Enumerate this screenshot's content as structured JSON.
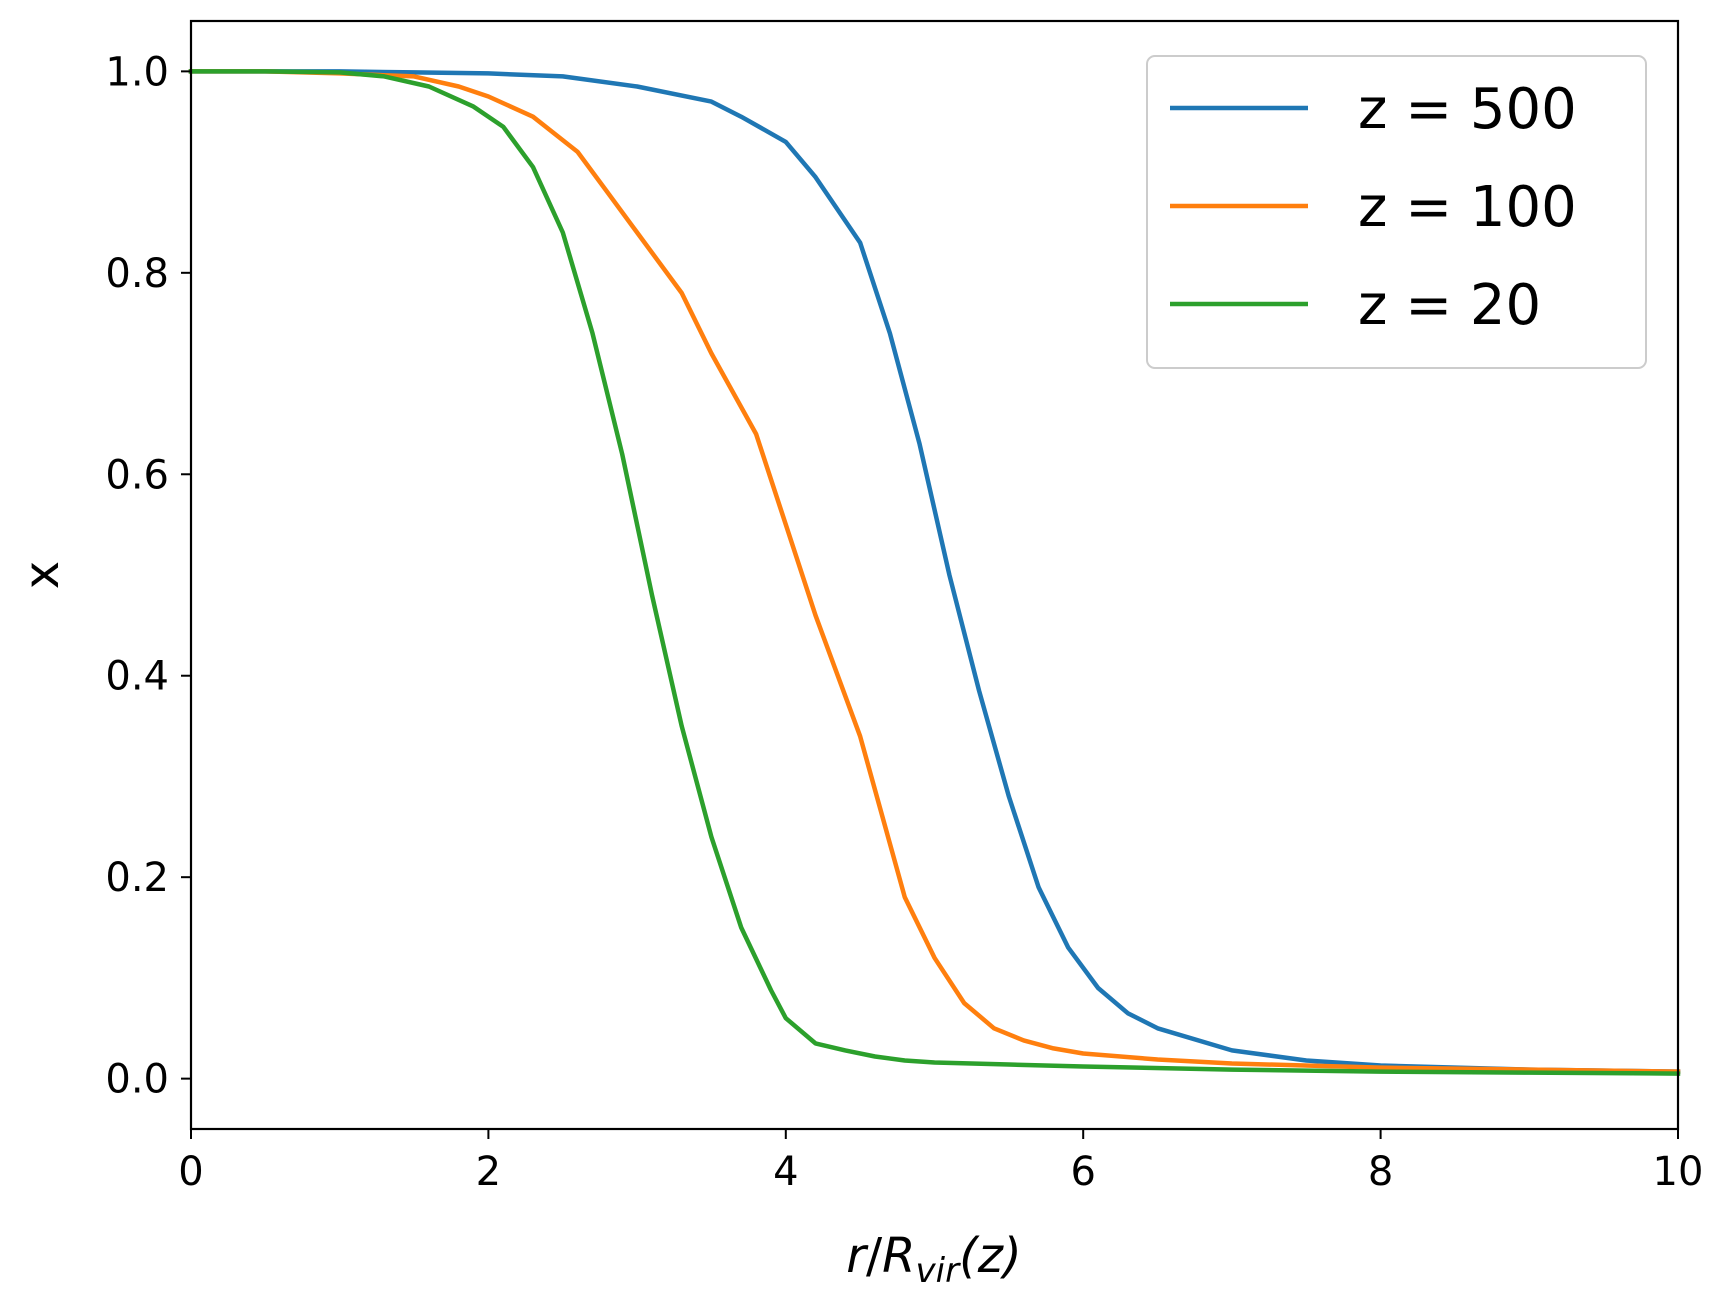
{
  "chart_data": {
    "type": "line",
    "xlabel_parts": {
      "r": "r",
      "slash": "/",
      "R": "R",
      "sub": "vir",
      "arg": "(z)"
    },
    "ylabel": "x",
    "xlim": [
      0,
      10
    ],
    "ylim": [
      -0.05,
      1.05
    ],
    "xticks": [
      0,
      2,
      4,
      6,
      8,
      10
    ],
    "xtick_labels": [
      "0",
      "2",
      "4",
      "6",
      "8",
      "10"
    ],
    "yticks": [
      0.0,
      0.2,
      0.4,
      0.6,
      0.8,
      1.0
    ],
    "ytick_labels": [
      "0.0",
      "0.2",
      "0.4",
      "0.6",
      "0.8",
      "1.0"
    ],
    "grid": false,
    "legend_position": "top-right",
    "series": [
      {
        "name": "z = 500",
        "color": "#1f77b4",
        "x": [
          0,
          0.5,
          1.0,
          1.5,
          2.0,
          2.5,
          3.0,
          3.5,
          3.7,
          4.0,
          4.2,
          4.5,
          4.7,
          4.9,
          5.1,
          5.3,
          5.5,
          5.7,
          5.9,
          6.1,
          6.3,
          6.5,
          7.0,
          7.5,
          8.0,
          9.0,
          10.0
        ],
        "y": [
          1.0,
          1.0,
          1.0,
          0.999,
          0.998,
          0.995,
          0.985,
          0.97,
          0.955,
          0.93,
          0.895,
          0.83,
          0.74,
          0.63,
          0.5,
          0.385,
          0.28,
          0.19,
          0.13,
          0.09,
          0.065,
          0.05,
          0.028,
          0.018,
          0.013,
          0.009,
          0.007
        ]
      },
      {
        "name": "z = 100",
        "color": "#ff7f0e",
        "x": [
          0,
          0.5,
          1.0,
          1.5,
          1.8,
          2.0,
          2.3,
          2.6,
          2.8,
          3.0,
          3.3,
          3.5,
          3.8,
          4.0,
          4.2,
          4.5,
          4.8,
          5.0,
          5.2,
          5.4,
          5.6,
          5.8,
          6.0,
          6.5,
          7.0,
          8.0,
          9.0,
          10.0
        ],
        "y": [
          1.0,
          1.0,
          0.998,
          0.995,
          0.985,
          0.975,
          0.955,
          0.92,
          0.88,
          0.84,
          0.78,
          0.72,
          0.64,
          0.55,
          0.46,
          0.34,
          0.18,
          0.12,
          0.075,
          0.05,
          0.038,
          0.03,
          0.025,
          0.019,
          0.015,
          0.011,
          0.009,
          0.007
        ]
      },
      {
        "name": "z = 20",
        "color": "#2ca02c",
        "x": [
          0,
          0.5,
          1.0,
          1.3,
          1.6,
          1.9,
          2.1,
          2.3,
          2.5,
          2.7,
          2.9,
          3.1,
          3.3,
          3.5,
          3.7,
          3.9,
          4.0,
          4.2,
          4.4,
          4.6,
          4.8,
          5.0,
          5.5,
          6.0,
          7.0,
          8.0,
          9.0,
          10.0
        ],
        "y": [
          1.0,
          1.0,
          0.999,
          0.995,
          0.985,
          0.965,
          0.945,
          0.905,
          0.84,
          0.74,
          0.62,
          0.48,
          0.35,
          0.24,
          0.15,
          0.088,
          0.06,
          0.035,
          0.028,
          0.022,
          0.018,
          0.016,
          0.014,
          0.012,
          0.009,
          0.007,
          0.006,
          0.005
        ]
      }
    ]
  }
}
